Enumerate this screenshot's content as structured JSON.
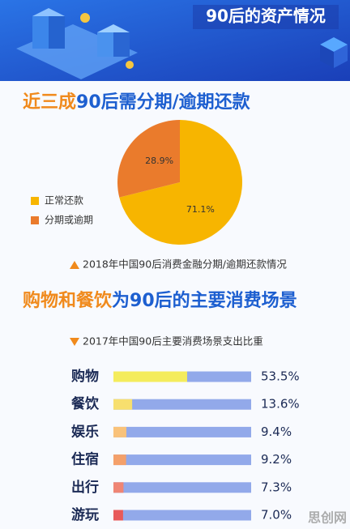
{
  "header": {
    "title": "90后的资产情况"
  },
  "chart_data": [
    {
      "type": "pie",
      "title_highlight": "近三成",
      "title": "90后需分期/逾期还款",
      "categories": [
        "正常还款",
        "分期或逾期"
      ],
      "values": [
        71.1,
        28.9
      ],
      "value_labels": [
        "71.1%",
        "28.9%"
      ],
      "colors": [
        "#f7b500",
        "#ea7b2c"
      ],
      "legend": "left",
      "caption": "2018年中国90后消费金融分期/逾期还款情况"
    },
    {
      "type": "hbar",
      "title_highlight": "购物和餐饮",
      "title": "为90后的主要消费场景",
      "caption": "2017年中国90后主要消费场景支出比重",
      "categories": [
        "购物",
        "餐饮",
        "娱乐",
        "住宿",
        "出行",
        "游玩"
      ],
      "values": [
        53.5,
        13.6,
        9.4,
        9.2,
        7.3,
        7.0
      ],
      "value_labels": [
        "53.5%",
        "13.6%",
        "9.4%",
        "9.2%",
        "7.3%",
        "7.0%"
      ],
      "colors": [
        "#f4ec5c",
        "#f7df6e",
        "#f9c27a",
        "#f4a06a",
        "#ef8574",
        "#e85a5a"
      ],
      "track_color": "#92a9ea",
      "xlim": [
        0,
        100
      ]
    }
  ],
  "watermark": "思创网"
}
